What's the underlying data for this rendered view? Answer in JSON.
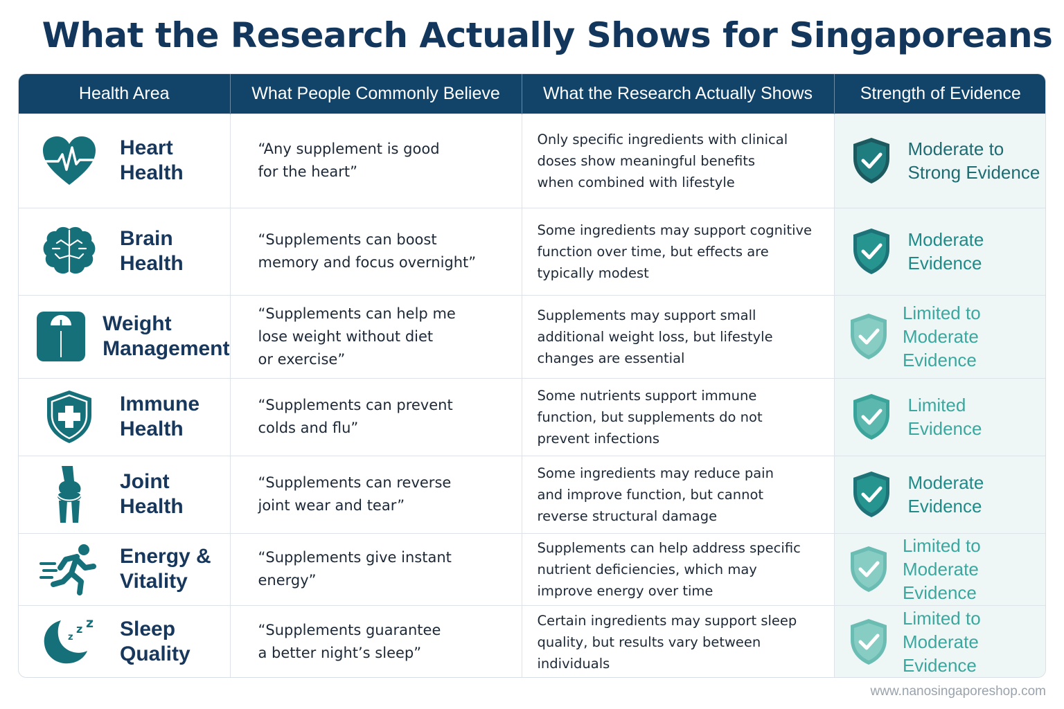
{
  "title": "What the Research Actually Shows for Singaporeans",
  "columns": [
    "Health Area",
    "What People Commonly Believe",
    "What the Research Actually Shows",
    "Strength of Evidence"
  ],
  "colors": {
    "header_bg": "#12446a",
    "title": "#12365c",
    "icon_teal": "#15707a",
    "evidence_strong": "#1e6c72",
    "evidence_moderate": "#1f8a87",
    "evidence_limited": "#3ba79e"
  },
  "rows": [
    {
      "icon": "heart-pulse-icon",
      "area": "Heart\nHealth",
      "belief": "“Any supplement is good\n  for the heart”",
      "finding": "Only specific ingredients with clinical\ndoses show meaningful benefits\nwhen combined with lifestyle",
      "evidence": "Moderate to\nStrong Evidence",
      "evidence_level": "strong"
    },
    {
      "icon": "brain-icon",
      "area": "Brain\nHealth",
      "belief": "“Supplements can boost\n  memory and focus overnight”",
      "finding": "Some ingredients may support cognitive\nfunction over time, but effects are\ntypically modest",
      "evidence": "Moderate\nEvidence",
      "evidence_level": "moderate"
    },
    {
      "icon": "weighing-scale-icon",
      "area": "Weight\nManagement",
      "belief": "“Supplements can help me\n  lose weight without diet\n  or exercise”",
      "finding": "Supplements may support small\nadditional weight loss, but lifestyle\nchanges are essential",
      "evidence": "Limited to\nModerate Evidence",
      "evidence_level": "limited-moderate"
    },
    {
      "icon": "shield-cross-icon",
      "area": "Immune\nHealth",
      "belief": "“Supplements can prevent\n  colds and flu”",
      "finding": "Some nutrients support immune\nfunction, but supplements do not\nprevent infections",
      "evidence": "Limited\nEvidence",
      "evidence_level": "limited"
    },
    {
      "icon": "knee-joint-icon",
      "area": "Joint\nHealth",
      "belief": "“Supplements can reverse\n  joint wear and tear”",
      "finding": "Some ingredients may reduce pain\nand improve function, but cannot\nreverse structural damage",
      "evidence": "Moderate\nEvidence",
      "evidence_level": "moderate"
    },
    {
      "icon": "running-person-icon",
      "area": "Energy &\nVitality",
      "belief": "“Supplements give instant\n  energy”",
      "finding": "Supplements can help address specific\nnutrient deficiencies, which may\nimprove energy over time",
      "evidence": "Limited to\nModerate Evidence",
      "evidence_level": "limited-moderate"
    },
    {
      "icon": "moon-sleep-icon",
      "area": "Sleep\nQuality",
      "belief": "“Supplements guarantee\n  a better night’s sleep”",
      "finding": "Certain ingredients may support sleep\nquality, but results vary between\nindividuals",
      "evidence": "Limited to\nModerate Evidence",
      "evidence_level": "limited-moderate"
    }
  ],
  "footer": "www.nanosingaporeshop.com"
}
